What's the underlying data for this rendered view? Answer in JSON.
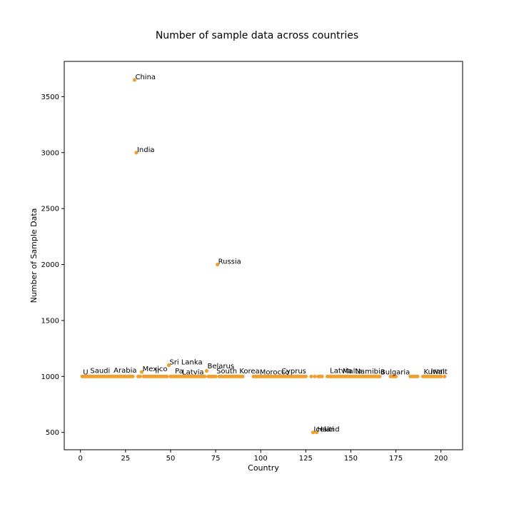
{
  "chart_data": {
    "type": "scatter",
    "title": "Number of sample data across countries",
    "xlabel": "Country",
    "ylabel": "Number of Sample Data",
    "xlim": [
      -9,
      212
    ],
    "ylim": [
      345,
      3815
    ],
    "xticks": [
      0,
      25,
      50,
      75,
      100,
      125,
      150,
      175,
      200
    ],
    "yticks": [
      500,
      1000,
      1500,
      2000,
      2500,
      3000,
      3500
    ],
    "grid": false,
    "marker_color": "#f0a030",
    "labeled_points": [
      {
        "x": 30,
        "y": 3650,
        "label": "China"
      },
      {
        "x": 31,
        "y": 3000,
        "label": "India"
      },
      {
        "x": 76,
        "y": 2000,
        "label": "Russia"
      },
      {
        "x": 49,
        "y": 1100,
        "label": "Sri Lanka"
      },
      {
        "x": 70,
        "y": 1065,
        "label": "Belarus"
      },
      {
        "x": 34,
        "y": 1040,
        "label": "Mexico"
      },
      {
        "x": 129,
        "y": 500,
        "label": "Iceland"
      },
      {
        "x": 131,
        "y": 500,
        "label": "Haiti"
      },
      {
        "x": 1,
        "y": 1010,
        "label": "U"
      },
      {
        "x": 5,
        "y": 1025,
        "label": "Saudi"
      },
      {
        "x": 18,
        "y": 1028,
        "label": "Arabia"
      },
      {
        "x": 41,
        "y": 1025,
        "label": "Ir"
      },
      {
        "x": 52,
        "y": 1022,
        "label": "Pa"
      },
      {
        "x": 56,
        "y": 1012,
        "label": "Latvia"
      },
      {
        "x": 75,
        "y": 1020,
        "label": "South Korea"
      },
      {
        "x": 99,
        "y": 1010,
        "label": "Morocco"
      },
      {
        "x": 111,
        "y": 1020,
        "label": "Cyprus"
      },
      {
        "x": 138,
        "y": 1025,
        "label": "Latvia"
      },
      {
        "x": 145,
        "y": 1020,
        "label": "Malta"
      },
      {
        "x": 152,
        "y": 1018,
        "label": "Namibia"
      },
      {
        "x": 166,
        "y": 1012,
        "label": "Bulgaria"
      },
      {
        "x": 190,
        "y": 1015,
        "label": "Kuwait"
      },
      {
        "x": 194,
        "y": 1022,
        "label": "Iran"
      }
    ],
    "points": [
      {
        "x": 1,
        "y": 1000
      },
      {
        "x": 2,
        "y": 1000
      },
      {
        "x": 3,
        "y": 1000
      },
      {
        "x": 4,
        "y": 1000
      },
      {
        "x": 5,
        "y": 1000
      },
      {
        "x": 6,
        "y": 1000
      },
      {
        "x": 7,
        "y": 1000
      },
      {
        "x": 8,
        "y": 1000
      },
      {
        "x": 9,
        "y": 1000
      },
      {
        "x": 10,
        "y": 1000
      },
      {
        "x": 11,
        "y": 1000
      },
      {
        "x": 12,
        "y": 1000
      },
      {
        "x": 13,
        "y": 1000
      },
      {
        "x": 14,
        "y": 1000
      },
      {
        "x": 15,
        "y": 1000
      },
      {
        "x": 16,
        "y": 1000
      },
      {
        "x": 17,
        "y": 1000
      },
      {
        "x": 18,
        "y": 1000
      },
      {
        "x": 19,
        "y": 1000
      },
      {
        "x": 20,
        "y": 1000
      },
      {
        "x": 21,
        "y": 1000
      },
      {
        "x": 22,
        "y": 1000
      },
      {
        "x": 23,
        "y": 1000
      },
      {
        "x": 24,
        "y": 1000
      },
      {
        "x": 25,
        "y": 1000
      },
      {
        "x": 26,
        "y": 1000
      },
      {
        "x": 27,
        "y": 1000
      },
      {
        "x": 28,
        "y": 1000
      },
      {
        "x": 29,
        "y": 1000
      },
      {
        "x": 30,
        "y": 3650
      },
      {
        "x": 31,
        "y": 3000
      },
      {
        "x": 32,
        "y": 1000
      },
      {
        "x": 33,
        "y": 1000
      },
      {
        "x": 34,
        "y": 1040
      },
      {
        "x": 35,
        "y": 1000
      },
      {
        "x": 36,
        "y": 1000
      },
      {
        "x": 37,
        "y": 1000
      },
      {
        "x": 38,
        "y": 1000
      },
      {
        "x": 39,
        "y": 1000
      },
      {
        "x": 40,
        "y": 1000
      },
      {
        "x": 41,
        "y": 1000
      },
      {
        "x": 42,
        "y": 1000
      },
      {
        "x": 43,
        "y": 1000
      },
      {
        "x": 44,
        "y": 1000
      },
      {
        "x": 45,
        "y": 1000
      },
      {
        "x": 46,
        "y": 1000
      },
      {
        "x": 47,
        "y": 1000
      },
      {
        "x": 48,
        "y": 1000
      },
      {
        "x": 49,
        "y": 1100
      },
      {
        "x": 50,
        "y": 1000
      },
      {
        "x": 51,
        "y": 1000
      },
      {
        "x": 52,
        "y": 1000
      },
      {
        "x": 53,
        "y": 1000
      },
      {
        "x": 54,
        "y": 1000
      },
      {
        "x": 55,
        "y": 1000
      },
      {
        "x": 56,
        "y": 1000
      },
      {
        "x": 57,
        "y": 1000
      },
      {
        "x": 58,
        "y": 1000
      },
      {
        "x": 59,
        "y": 1000
      },
      {
        "x": 60,
        "y": 1000
      },
      {
        "x": 61,
        "y": 1000
      },
      {
        "x": 62,
        "y": 1000
      },
      {
        "x": 63,
        "y": 1000
      },
      {
        "x": 64,
        "y": 1000
      },
      {
        "x": 65,
        "y": 1000
      },
      {
        "x": 66,
        "y": 1000
      },
      {
        "x": 67,
        "y": 1000
      },
      {
        "x": 68,
        "y": 1000
      },
      {
        "x": 69,
        "y": 1000
      },
      {
        "x": 70,
        "y": 1050
      },
      {
        "x": 71,
        "y": 1000
      },
      {
        "x": 72,
        "y": 1000
      },
      {
        "x": 73,
        "y": 1000
      },
      {
        "x": 74,
        "y": 1000
      },
      {
        "x": 75,
        "y": 1000
      },
      {
        "x": 76,
        "y": 2000
      },
      {
        "x": 77,
        "y": 1000
      },
      {
        "x": 78,
        "y": 1000
      },
      {
        "x": 79,
        "y": 1000
      },
      {
        "x": 80,
        "y": 1000
      },
      {
        "x": 81,
        "y": 1000
      },
      {
        "x": 82,
        "y": 1000
      },
      {
        "x": 83,
        "y": 1000
      },
      {
        "x": 84,
        "y": 1000
      },
      {
        "x": 85,
        "y": 1000
      },
      {
        "x": 86,
        "y": 1000
      },
      {
        "x": 87,
        "y": 1000
      },
      {
        "x": 88,
        "y": 1000
      },
      {
        "x": 89,
        "y": 1000
      },
      {
        "x": 90,
        "y": 1000
      },
      {
        "x": 96,
        "y": 1000
      },
      {
        "x": 97,
        "y": 1000
      },
      {
        "x": 98,
        "y": 1000
      },
      {
        "x": 99,
        "y": 1000
      },
      {
        "x": 100,
        "y": 1000
      },
      {
        "x": 101,
        "y": 1000
      },
      {
        "x": 102,
        "y": 1000
      },
      {
        "x": 103,
        "y": 1000
      },
      {
        "x": 104,
        "y": 1000
      },
      {
        "x": 105,
        "y": 1000
      },
      {
        "x": 106,
        "y": 1000
      },
      {
        "x": 107,
        "y": 1000
      },
      {
        "x": 108,
        "y": 1000
      },
      {
        "x": 109,
        "y": 1000
      },
      {
        "x": 110,
        "y": 1000
      },
      {
        "x": 111,
        "y": 1000
      },
      {
        "x": 112,
        "y": 1000
      },
      {
        "x": 113,
        "y": 1000
      },
      {
        "x": 114,
        "y": 1000
      },
      {
        "x": 115,
        "y": 1000
      },
      {
        "x": 116,
        "y": 1000
      },
      {
        "x": 117,
        "y": 1000
      },
      {
        "x": 118,
        "y": 1000
      },
      {
        "x": 119,
        "y": 1000
      },
      {
        "x": 120,
        "y": 1000
      },
      {
        "x": 121,
        "y": 1000
      },
      {
        "x": 122,
        "y": 1000
      },
      {
        "x": 123,
        "y": 1000
      },
      {
        "x": 124,
        "y": 1000
      },
      {
        "x": 125,
        "y": 1000
      },
      {
        "x": 129,
        "y": 500
      },
      {
        "x": 131,
        "y": 500
      },
      {
        "x": 128,
        "y": 1000
      },
      {
        "x": 130,
        "y": 1000
      },
      {
        "x": 132,
        "y": 1000
      },
      {
        "x": 133,
        "y": 1000
      },
      {
        "x": 134,
        "y": 1000
      },
      {
        "x": 137,
        "y": 1000
      },
      {
        "x": 138,
        "y": 1000
      },
      {
        "x": 139,
        "y": 1000
      },
      {
        "x": 140,
        "y": 1000
      },
      {
        "x": 141,
        "y": 1000
      },
      {
        "x": 142,
        "y": 1000
      },
      {
        "x": 143,
        "y": 1000
      },
      {
        "x": 144,
        "y": 1000
      },
      {
        "x": 145,
        "y": 1000
      },
      {
        "x": 146,
        "y": 1000
      },
      {
        "x": 147,
        "y": 1000
      },
      {
        "x": 148,
        "y": 1000
      },
      {
        "x": 149,
        "y": 1000
      },
      {
        "x": 150,
        "y": 1000
      },
      {
        "x": 151,
        "y": 1000
      },
      {
        "x": 152,
        "y": 1000
      },
      {
        "x": 153,
        "y": 1000
      },
      {
        "x": 154,
        "y": 1000
      },
      {
        "x": 155,
        "y": 1000
      },
      {
        "x": 156,
        "y": 1000
      },
      {
        "x": 157,
        "y": 1000
      },
      {
        "x": 158,
        "y": 1000
      },
      {
        "x": 159,
        "y": 1000
      },
      {
        "x": 160,
        "y": 1000
      },
      {
        "x": 161,
        "y": 1000
      },
      {
        "x": 162,
        "y": 1000
      },
      {
        "x": 163,
        "y": 1000
      },
      {
        "x": 164,
        "y": 1000
      },
      {
        "x": 165,
        "y": 1000
      },
      {
        "x": 166,
        "y": 1000
      },
      {
        "x": 172,
        "y": 1000
      },
      {
        "x": 173,
        "y": 1000
      },
      {
        "x": 174,
        "y": 1000
      },
      {
        "x": 175,
        "y": 1000
      },
      {
        "x": 183,
        "y": 1000
      },
      {
        "x": 184,
        "y": 1000
      },
      {
        "x": 185,
        "y": 1000
      },
      {
        "x": 186,
        "y": 1000
      },
      {
        "x": 187,
        "y": 1000
      },
      {
        "x": 190,
        "y": 1000
      },
      {
        "x": 191,
        "y": 1000
      },
      {
        "x": 192,
        "y": 1000
      },
      {
        "x": 193,
        "y": 1000
      },
      {
        "x": 194,
        "y": 1000
      },
      {
        "x": 195,
        "y": 1000
      },
      {
        "x": 196,
        "y": 1000
      },
      {
        "x": 197,
        "y": 1000
      },
      {
        "x": 198,
        "y": 1000
      },
      {
        "x": 199,
        "y": 1000
      },
      {
        "x": 200,
        "y": 1000
      },
      {
        "x": 202,
        "y": 1000
      }
    ]
  }
}
